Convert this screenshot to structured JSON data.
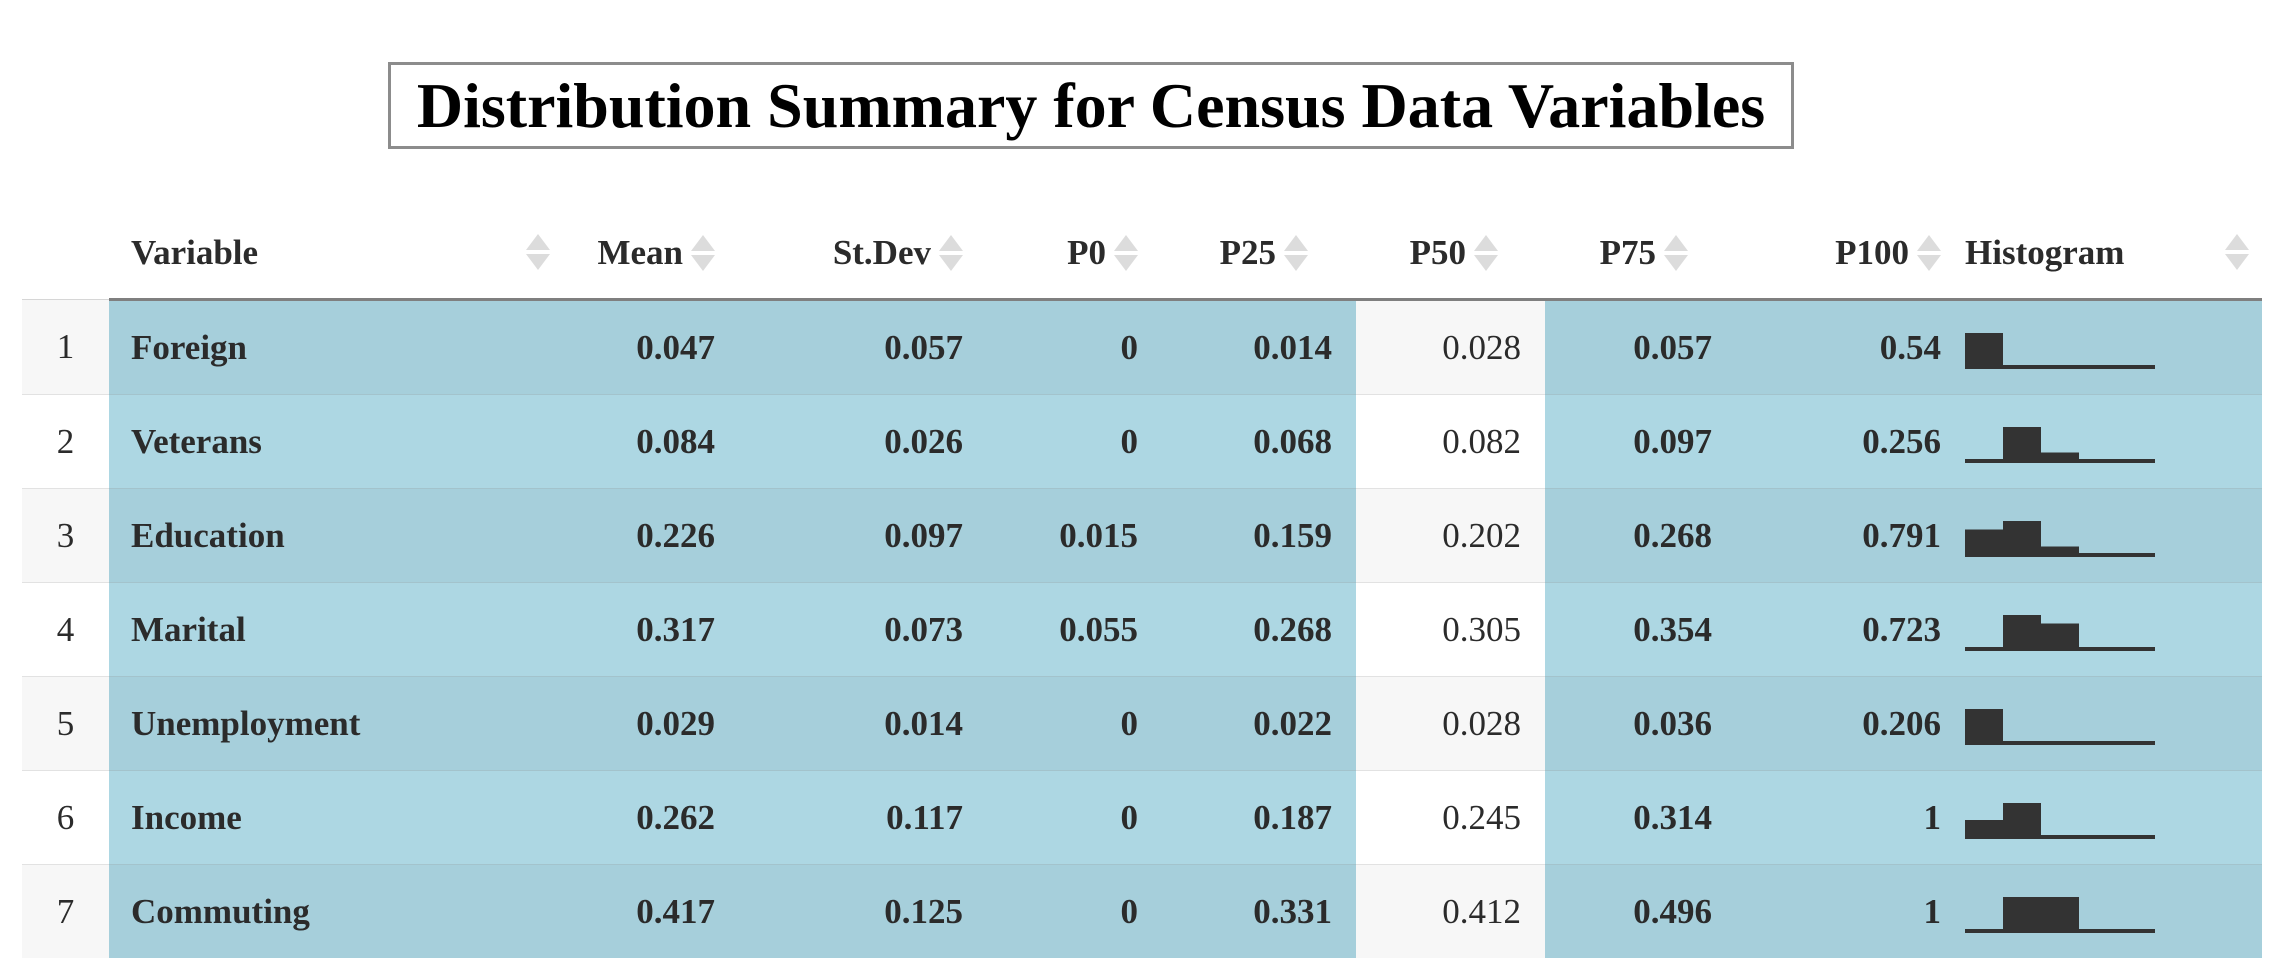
{
  "caption": "Distribution Summary for Census Data Variables",
  "columns": {
    "variable": "Variable",
    "mean": "Mean",
    "sd": "St.Dev",
    "p0": "P0",
    "p25": "P25",
    "p50": "P50",
    "p75": "P75",
    "p100": "P100",
    "hist": "Histogram"
  },
  "rows": [
    {
      "index": "1",
      "variable": "Foreign",
      "mean": "0.047",
      "sd": "0.057",
      "p0": "0",
      "p25": "0.014",
      "p50": "0.028",
      "p75": "0.057",
      "p100": "0.54",
      "hist": [
        1,
        0,
        0,
        0,
        0
      ]
    },
    {
      "index": "2",
      "variable": "Veterans",
      "mean": "0.084",
      "sd": "0.026",
      "p0": "0",
      "p25": "0.068",
      "p50": "0.082",
      "p75": "0.097",
      "p100": "0.256",
      "hist": [
        0,
        1,
        0.25,
        0,
        0
      ]
    },
    {
      "index": "3",
      "variable": "Education",
      "mean": "0.226",
      "sd": "0.097",
      "p0": "0.015",
      "p25": "0.159",
      "p50": "0.202",
      "p75": "0.268",
      "p100": "0.791",
      "hist": [
        0.75,
        1,
        0.25,
        0,
        0
      ]
    },
    {
      "index": "4",
      "variable": "Marital",
      "mean": "0.317",
      "sd": "0.073",
      "p0": "0.055",
      "p25": "0.268",
      "p50": "0.305",
      "p75": "0.354",
      "p100": "0.723",
      "hist": [
        0,
        1,
        0.75,
        0,
        0
      ]
    },
    {
      "index": "5",
      "variable": "Unemployment",
      "mean": "0.029",
      "sd": "0.014",
      "p0": "0",
      "p25": "0.022",
      "p50": "0.028",
      "p75": "0.036",
      "p100": "0.206",
      "hist": [
        1,
        0,
        0,
        0,
        0
      ]
    },
    {
      "index": "6",
      "variable": "Income",
      "mean": "0.262",
      "sd": "0.117",
      "p0": "0",
      "p25": "0.187",
      "p50": "0.245",
      "p75": "0.314",
      "p100": "1",
      "hist": [
        0.5,
        1,
        0,
        0,
        0
      ]
    },
    {
      "index": "7",
      "variable": "Commuting",
      "mean": "0.417",
      "sd": "0.125",
      "p0": "0",
      "p25": "0.331",
      "p50": "0.412",
      "p75": "0.496",
      "p100": "1",
      "hist": [
        0,
        1,
        1,
        0,
        0
      ]
    }
  ],
  "colors": {
    "highlight": "#a9d2de",
    "stripe": "#f7f7f7",
    "bar": "#333333"
  }
}
